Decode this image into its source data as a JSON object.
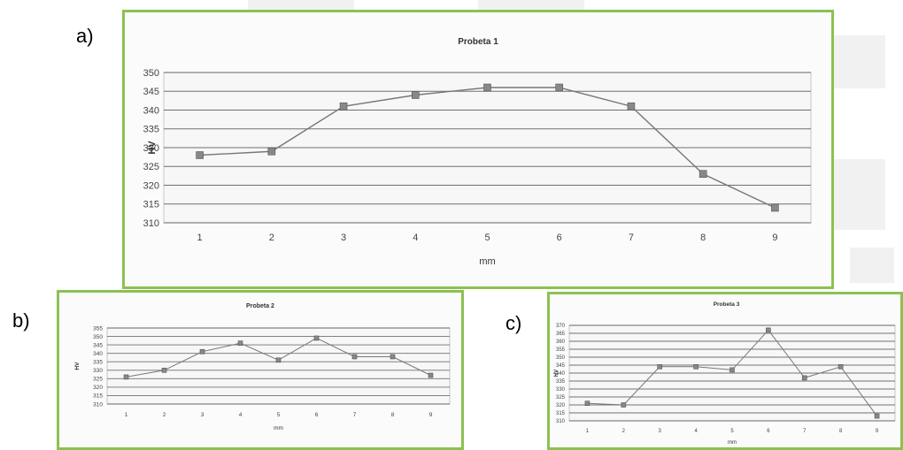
{
  "panel_labels": {
    "a": "a)",
    "b": "b)",
    "c": "c)"
  },
  "colors": {
    "frame": "#8cc152",
    "line": "#777777",
    "marker": "#888888",
    "grid": "#444444"
  },
  "chart_data": [
    {
      "id": "a",
      "type": "line",
      "title": "Probeta 1",
      "xlabel": "mm",
      "ylabel": "HV",
      "categories": [
        "1",
        "2",
        "3",
        "4",
        "5",
        "6",
        "7",
        "8",
        "9"
      ],
      "values": [
        328,
        329,
        341,
        344,
        346,
        346,
        341,
        323,
        314
      ],
      "ylim": [
        310,
        350
      ],
      "yticks": [
        310,
        315,
        320,
        325,
        330,
        335,
        340,
        345,
        350
      ],
      "grid": true,
      "legend": "none"
    },
    {
      "id": "b",
      "type": "line",
      "title": "Probeta 2",
      "xlabel": "mm",
      "ylabel": "HV",
      "categories": [
        "1",
        "2",
        "3",
        "4",
        "5",
        "6",
        "7",
        "8",
        "9"
      ],
      "values": [
        326,
        330,
        341,
        346,
        336,
        349,
        338,
        338,
        327
      ],
      "ylim": [
        310,
        355
      ],
      "yticks": [
        310,
        315,
        320,
        325,
        330,
        335,
        340,
        345,
        350,
        355
      ],
      "grid": true,
      "legend": "none"
    },
    {
      "id": "c",
      "type": "line",
      "title": "Probeta 3",
      "xlabel": "mm",
      "ylabel": "HV",
      "categories": [
        "1",
        "2",
        "3",
        "4",
        "5",
        "6",
        "7",
        "8",
        "9"
      ],
      "values": [
        321,
        320,
        344,
        344,
        342,
        367,
        337,
        344,
        313
      ],
      "ylim": [
        310,
        370
      ],
      "yticks": [
        310,
        315,
        320,
        325,
        330,
        335,
        340,
        345,
        350,
        355,
        360,
        365,
        370
      ],
      "grid": true,
      "legend": "none"
    }
  ]
}
